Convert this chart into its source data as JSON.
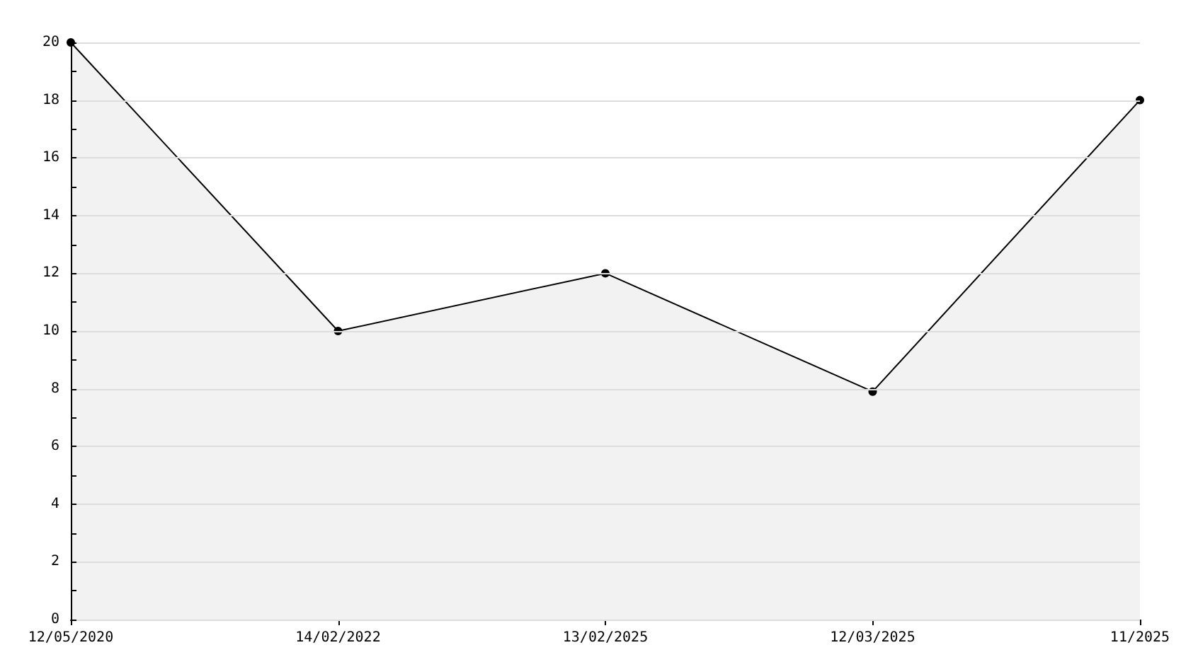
{
  "chart_data": {
    "type": "area",
    "categories": [
      "12/05/2020",
      "14/02/2022",
      "13/02/2025",
      "12/03/2025",
      "11/2025"
    ],
    "series": [
      {
        "color": "#f2f2f2",
        "values": [
          20,
          10,
          12,
          7.9,
          18
        ]
      }
    ],
    "ylim": [
      0,
      20
    ],
    "yticks": [
      0,
      {
        "value": 1,
        "label": null
      },
      2,
      {
        "value": 3,
        "label": null
      },
      4,
      {
        "value": 5,
        "label": null
      },
      6,
      {
        "value": 7,
        "label": null
      },
      8,
      {
        "value": 9,
        "label": null
      },
      10,
      {
        "value": 11,
        "label": null
      },
      12,
      {
        "value": 13,
        "label": null
      },
      14,
      {
        "value": 15,
        "label": null
      },
      16,
      {
        "value": 17,
        "label": null
      },
      18,
      {
        "value": 19,
        "label": null
      },
      20
    ],
    "grid": "y",
    "marker": "circle",
    "line_style": "solid"
  }
}
